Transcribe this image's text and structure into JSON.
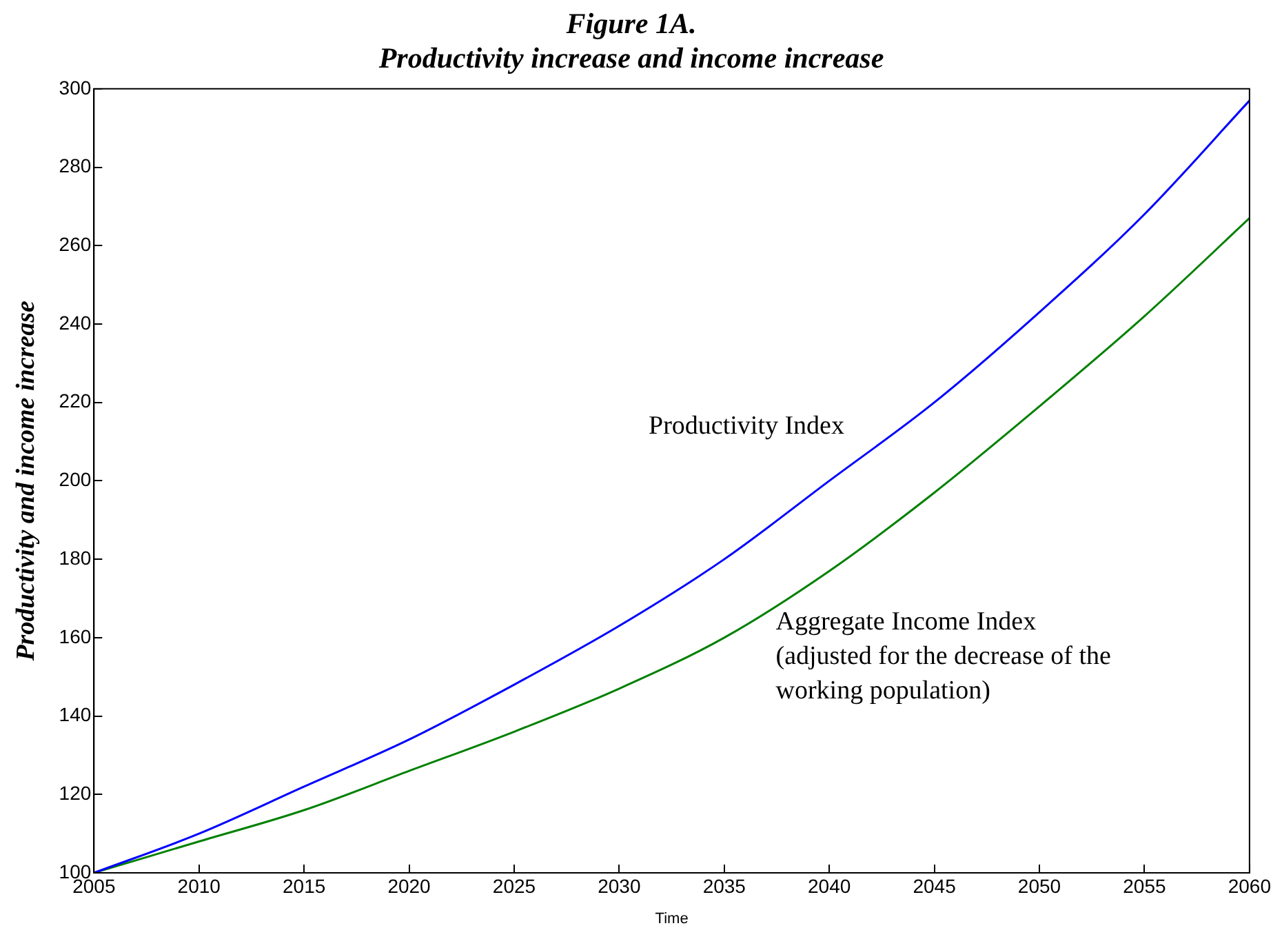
{
  "chart_data": {
    "type": "line",
    "title": "Figure 1A.\nProductivity increase and income increase",
    "xlabel": "Time",
    "ylabel": "Productivity and income increase",
    "x": [
      2005,
      2010,
      2015,
      2020,
      2025,
      2030,
      2035,
      2040,
      2045,
      2050,
      2055,
      2060
    ],
    "series": [
      {
        "name": "Productivity Index",
        "color": "#0000ff",
        "values": [
          100,
          110,
          122,
          134,
          148,
          163,
          180,
          200,
          220,
          243,
          268,
          297
        ]
      },
      {
        "name": "Aggregate Income Index\n(adjusted for the decrease of the\nworking population)",
        "color": "#008000",
        "values": [
          100,
          108,
          116,
          126,
          136,
          147,
          160,
          177,
          197,
          219,
          242,
          267
        ]
      }
    ],
    "xlim": [
      2005,
      2060
    ],
    "xticks": [
      2005,
      2010,
      2015,
      2020,
      2025,
      2030,
      2035,
      2040,
      2045,
      2050,
      2055,
      2060
    ],
    "ylim": [
      100,
      300
    ],
    "yticks": [
      100,
      120,
      140,
      160,
      180,
      200,
      220,
      240,
      260,
      280,
      300
    ],
    "grid": false,
    "legend": false,
    "marker": "none",
    "line_style": "solid"
  }
}
